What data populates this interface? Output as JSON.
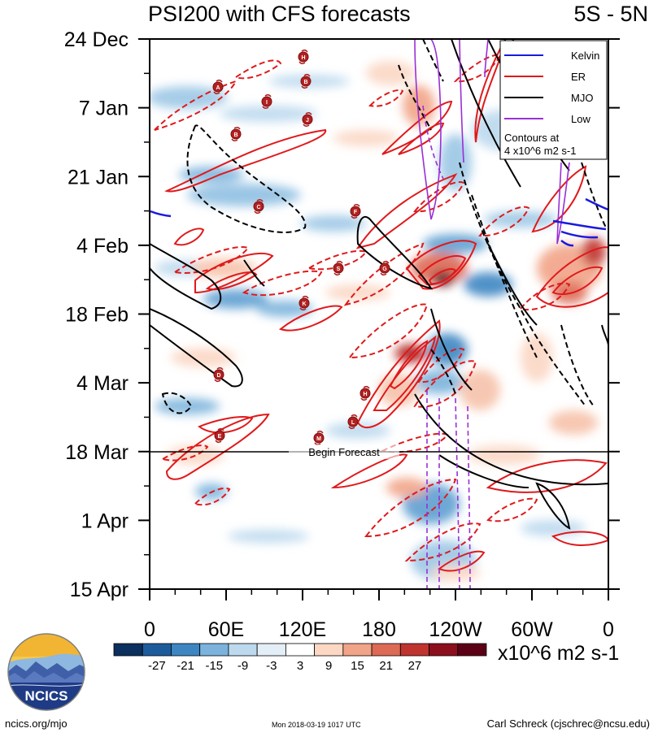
{
  "header": {
    "title": "PSI200 with CFS forecasts",
    "region": "5S - 5N"
  },
  "footer": {
    "site": "ncics.org/mjo",
    "timestamp": "Mon 2018-03-19 1017 UTC",
    "author": "Carl Schreck (cjschrec@ncsu.edu)"
  },
  "logo": {
    "text": "NCICS"
  },
  "chart_data": {
    "type": "heatmap",
    "title": "PSI200 with CFS forecasts",
    "subtitle": "5S - 5N",
    "x_ticks": [
      "0",
      "60E",
      "120E",
      "180",
      "120W",
      "60W",
      "0"
    ],
    "y_ticks": [
      "24 Dec",
      "7 Jan",
      "21 Jan",
      "4 Feb",
      "18 Feb",
      "4 Mar",
      "18 Mar",
      "1 Apr",
      "15 Apr"
    ],
    "forecast_label": "Begin Forecast",
    "forecast_start": "18 Mar",
    "colorbar": {
      "labels": [
        "-27",
        "-21",
        "-15",
        "-9",
        "-3",
        "3",
        "9",
        "15",
        "21",
        "27"
      ],
      "colors": [
        "#0b2f5e",
        "#1d5c9c",
        "#3d86c2",
        "#7bb3dc",
        "#bcd9ee",
        "#e3eef6",
        "#ffffff",
        "#fbd7c4",
        "#f2a488",
        "#dd6a55",
        "#c0342f",
        "#8d0f1e",
        "#5c0016"
      ],
      "units": "x10^6 m2 s-1"
    },
    "legend": {
      "position": "top-right",
      "entries": [
        {
          "name": "Kelvin",
          "color": "#1a1adf"
        },
        {
          "name": "ER",
          "color": "#e0191b"
        },
        {
          "name": "MJO",
          "color": "#000000"
        },
        {
          "name": "Low",
          "color": "#9a2fd6"
        }
      ],
      "note": [
        "Contours at",
        "4 x10^6 m2 s-1"
      ]
    },
    "storm_labels": [
      "H",
      "B",
      "A",
      "I",
      "J",
      "B",
      "C",
      "F",
      "S",
      "G",
      "K",
      "D",
      "H",
      "L",
      "E",
      "M"
    ]
  }
}
